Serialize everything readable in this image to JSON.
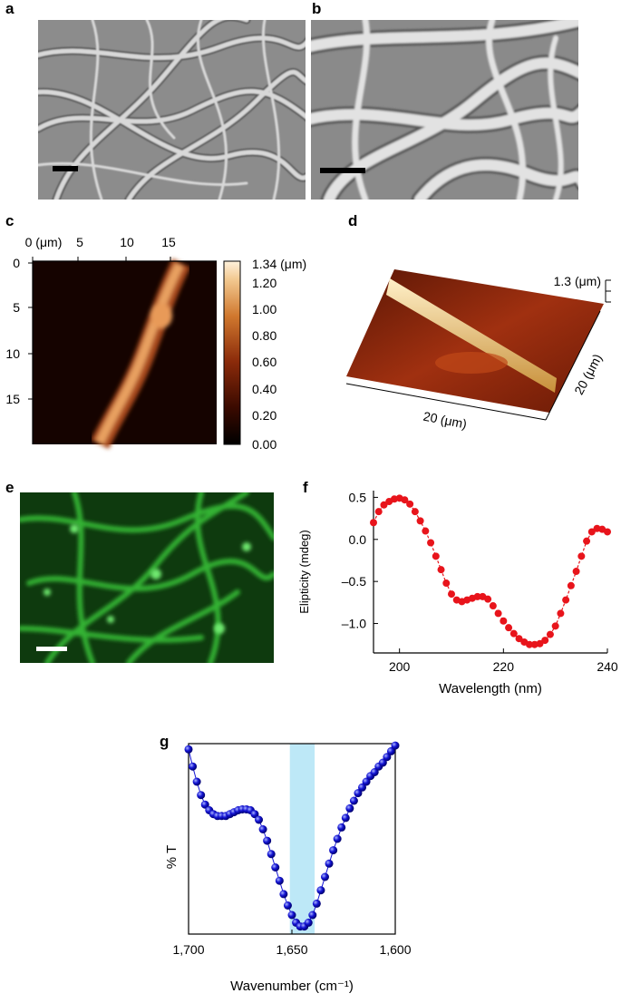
{
  "panels": {
    "a": {
      "letter": "a"
    },
    "b": {
      "letter": "b"
    },
    "c": {
      "letter": "c",
      "x_ticks": [
        "0 (μm)",
        "5",
        "10",
        "15"
      ],
      "y_ticks": [
        "0",
        "5",
        "10",
        "15"
      ],
      "colorbar_ticks": [
        "1.34 (μm)",
        "1.20",
        "1.00",
        "0.80",
        "0.60",
        "0.40",
        "0.20",
        "0.00"
      ]
    },
    "d": {
      "letter": "d",
      "height_label": "1.3 (μm)",
      "x_label": "20 (μm)",
      "y_label": "20 (μm)"
    },
    "e": {
      "letter": "e"
    },
    "f": {
      "letter": "f"
    },
    "g": {
      "letter": "g"
    }
  },
  "chart_data": [
    {
      "panel": "f",
      "type": "line",
      "xlabel": "Wavelength (nm)",
      "ylabel": "Elipticity (mdeg)",
      "xlim": [
        195,
        240
      ],
      "ylim": [
        -1.35,
        0.58
      ],
      "x_ticks": [
        200,
        220,
        240
      ],
      "y_ticks": [
        0.5,
        0.0,
        -0.5,
        -1.0
      ],
      "y_tick_labels": [
        "0.5",
        "0.0",
        "–0.5",
        "–1.0"
      ],
      "color": "#e8141b",
      "x": [
        195,
        196,
        197,
        198,
        199,
        200,
        201,
        202,
        203,
        204,
        205,
        206,
        207,
        208,
        209,
        210,
        211,
        212,
        213,
        214,
        215,
        216,
        217,
        218,
        219,
        220,
        221,
        222,
        223,
        224,
        225,
        226,
        227,
        228,
        229,
        230,
        231,
        232,
        233,
        234,
        235,
        236,
        237,
        238,
        239,
        240
      ],
      "y": [
        0.2,
        0.33,
        0.41,
        0.45,
        0.48,
        0.49,
        0.47,
        0.42,
        0.33,
        0.22,
        0.1,
        -0.04,
        -0.2,
        -0.36,
        -0.52,
        -0.65,
        -0.72,
        -0.74,
        -0.72,
        -0.7,
        -0.68,
        -0.68,
        -0.71,
        -0.79,
        -0.88,
        -0.97,
        -1.05,
        -1.12,
        -1.18,
        -1.22,
        -1.25,
        -1.25,
        -1.24,
        -1.2,
        -1.13,
        -1.03,
        -0.88,
        -0.72,
        -0.55,
        -0.38,
        -0.2,
        -0.02,
        0.09,
        0.13,
        0.12,
        0.09
      ]
    },
    {
      "panel": "g",
      "type": "line",
      "xlabel": "Wavenumber (cm⁻¹)",
      "ylabel": "% T",
      "xlim": [
        1700,
        1600
      ],
      "ylim": [
        0,
        1
      ],
      "x_ticks": [
        1700,
        1650,
        1600
      ],
      "x_tick_labels": [
        "1,700",
        "1,650",
        "1,600"
      ],
      "highlight": {
        "from": 1651,
        "to": 1639,
        "color": "#bde8f7"
      },
      "color": "#1414d4",
      "x": [
        1700,
        1698,
        1696,
        1694,
        1692,
        1690,
        1688,
        1686,
        1684,
        1682,
        1680,
        1678,
        1676,
        1674,
        1672,
        1670,
        1668,
        1666,
        1664,
        1662,
        1660,
        1658,
        1656,
        1654,
        1652,
        1650,
        1648,
        1646,
        1644,
        1642,
        1640,
        1638,
        1636,
        1634,
        1632,
        1630,
        1628,
        1626,
        1624,
        1622,
        1620,
        1618,
        1616,
        1614,
        1612,
        1610,
        1608,
        1606,
        1604,
        1602,
        1600
      ],
      "y": [
        0.97,
        0.88,
        0.8,
        0.73,
        0.68,
        0.65,
        0.63,
        0.62,
        0.62,
        0.62,
        0.63,
        0.64,
        0.65,
        0.655,
        0.655,
        0.65,
        0.63,
        0.6,
        0.55,
        0.49,
        0.42,
        0.35,
        0.28,
        0.21,
        0.15,
        0.1,
        0.06,
        0.04,
        0.04,
        0.06,
        0.1,
        0.16,
        0.23,
        0.3,
        0.37,
        0.44,
        0.5,
        0.56,
        0.61,
        0.66,
        0.7,
        0.74,
        0.77,
        0.8,
        0.83,
        0.85,
        0.88,
        0.9,
        0.93,
        0.96,
        0.99
      ]
    }
  ]
}
